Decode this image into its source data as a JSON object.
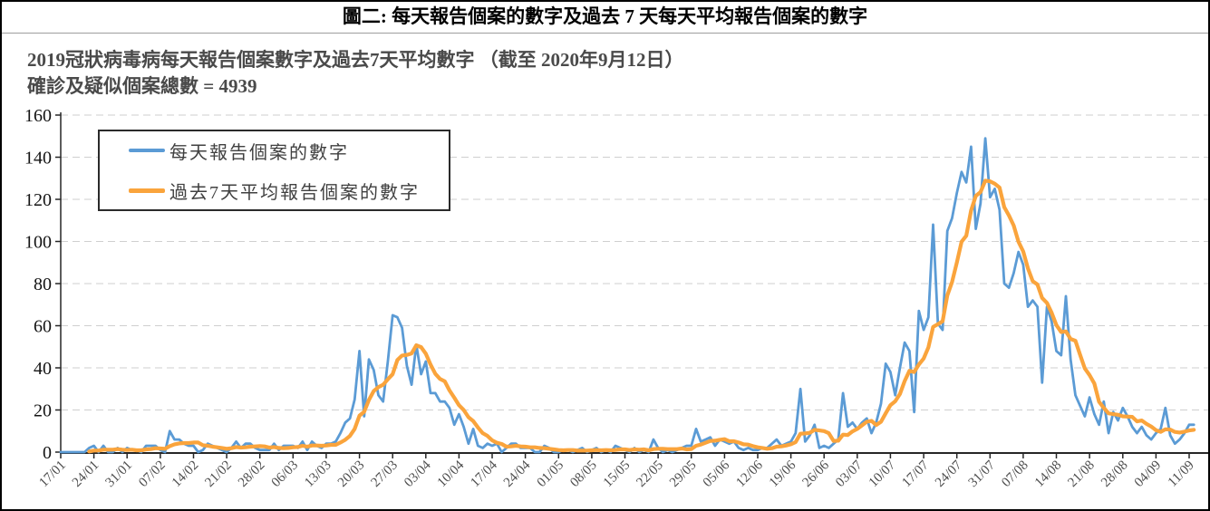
{
  "figure": {
    "title": "圖二: 每天報告個案的數字及過去 7 天每天平均報告個案的數字"
  },
  "chart_data": {
    "type": "line",
    "title": "圖二: 每天報告個案的數字及過去 7 天每天平均報告個案的數字",
    "subtitle": "2019冠狀病毒病每天報告個案數字及過去7天平均數字 （截至 2020年9月12日）",
    "total_label": "確診及疑似個案總數 = 4939",
    "total_reported_cases": 4939,
    "as_of_date": "2020年9月12日",
    "x_start_label": "17/01",
    "x_last_data_date": "12/09",
    "x_tick_interval_days": 7,
    "x_tick_labels": [
      "17/01",
      "24/01",
      "31/01",
      "07/02",
      "14/02",
      "21/02",
      "28/02",
      "06/03",
      "13/03",
      "20/03",
      "27/03",
      "03/04",
      "10/04",
      "17/04",
      "24/04",
      "01/05",
      "08/05",
      "15/05",
      "22/05",
      "29/05",
      "05/06",
      "12/06",
      "19/06",
      "26/06",
      "03/07",
      "10/07",
      "17/07",
      "24/07",
      "31/07",
      "07/08",
      "14/08",
      "21/08",
      "28/08",
      "04/09",
      "11/09"
    ],
    "ylim": [
      0,
      160
    ],
    "y_ticks": [
      0,
      20,
      40,
      60,
      80,
      100,
      120,
      140,
      160
    ],
    "grid": "horizontal-dashed",
    "grid_color": "#cfcfcf",
    "axis_color": "#262626",
    "legend_position": "top-left-inside",
    "series": [
      {
        "name": "每天報告個案的數字",
        "color": "#5B9BD5",
        "kind": "daily-reported-cases",
        "start_date": "17/01",
        "values": [
          0,
          0,
          0,
          0,
          0,
          0,
          2,
          3,
          0,
          3,
          0,
          0,
          2,
          0,
          2,
          1,
          1,
          0,
          3,
          3,
          3,
          1,
          0,
          10,
          6,
          6,
          4,
          3,
          3,
          0,
          1,
          4,
          3,
          2,
          1,
          0,
          2,
          5,
          2,
          4,
          4,
          2,
          1,
          1,
          1,
          4,
          1,
          3,
          3,
          3,
          2,
          5,
          1,
          5,
          3,
          2,
          4,
          4,
          5,
          9,
          14,
          16,
          25,
          48,
          17,
          44,
          39,
          27,
          24,
          43,
          65,
          64,
          59,
          41,
          32,
          51,
          37,
          43,
          28,
          28,
          24,
          24,
          21,
          13,
          18,
          12,
          4,
          11,
          3,
          2,
          4,
          3,
          4,
          0,
          2,
          4,
          4,
          2,
          2,
          2,
          0,
          0,
          3,
          2,
          0,
          0,
          1,
          1,
          0,
          1,
          2,
          0,
          1,
          2,
          0,
          1,
          0,
          3,
          2,
          1,
          0,
          2,
          0,
          1,
          0,
          6,
          2,
          0,
          1,
          0,
          1,
          2,
          3,
          3,
          11,
          5,
          6,
          7,
          3,
          6,
          5,
          4,
          5,
          2,
          1,
          2,
          1,
          1,
          2,
          2,
          4,
          6,
          3,
          4,
          5,
          9,
          30,
          5,
          8,
          13,
          2,
          3,
          2,
          4,
          6,
          28,
          12,
          14,
          11,
          14,
          16,
          9,
          14,
          23,
          42,
          38,
          27,
          40,
          52,
          48,
          19,
          67,
          58,
          64,
          108,
          61,
          58,
          105,
          111,
          123,
          133,
          128,
          145,
          106,
          118,
          149,
          121,
          125,
          115,
          80,
          78,
          85,
          95,
          89,
          69,
          72,
          69,
          33,
          69,
          62,
          48,
          46,
          74,
          44,
          27,
          22,
          17,
          26,
          18,
          13,
          24,
          9,
          19,
          15,
          21,
          17,
          12,
          9,
          12,
          8,
          6,
          9,
          11,
          21,
          8,
          4,
          6,
          9,
          13,
          13
        ]
      },
      {
        "name": "過去7天平均報告個案的數字",
        "color": "#FAA43C",
        "kind": "7-day-average",
        "derived_from": "trailing 7-day mean of the daily series"
      }
    ]
  }
}
